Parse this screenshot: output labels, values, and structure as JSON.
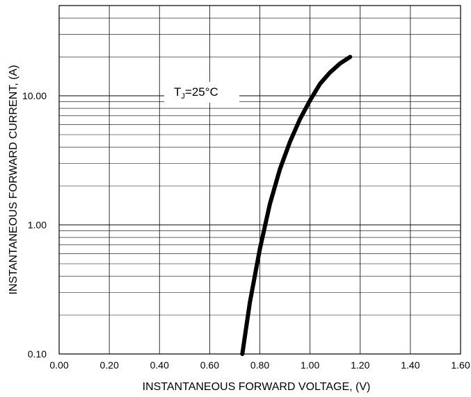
{
  "chart_data": {
    "type": "line",
    "xlabel": "INSTANTANEOUS FORWARD VOLTAGE, (V)",
    "ylabel": "INSTANTANEOUS FORWARD CURRENT, (A)",
    "x_tick_labels": [
      "0.00",
      "0.20",
      "0.40",
      "0.60",
      "0.80",
      "1.00",
      "1.20",
      "1.40",
      "1.60"
    ],
    "x_ticks": [
      0,
      0.2,
      0.4,
      0.6,
      0.8,
      1.0,
      1.2,
      1.4,
      1.6
    ],
    "y_tick_labels": [
      "0.10",
      "1.00",
      "10.00"
    ],
    "y_ticks": [
      0.1,
      1,
      10
    ],
    "xlim": [
      0,
      1.6
    ],
    "ylim": [
      0.1,
      50
    ],
    "y_scale": "log",
    "grid": true,
    "annotation": {
      "main": "T",
      "sub": "J",
      "rest": "=25°C"
    },
    "series": [
      {
        "x": [
          0.73,
          0.76,
          0.8,
          0.84,
          0.88,
          0.92,
          0.96,
          1.0,
          1.04,
          1.08,
          1.12,
          1.16
        ],
        "y": [
          0.1,
          0.25,
          0.65,
          1.45,
          2.7,
          4.4,
          6.6,
          9.2,
          12.4,
          15.2,
          17.8,
          20.0
        ]
      }
    ]
  }
}
